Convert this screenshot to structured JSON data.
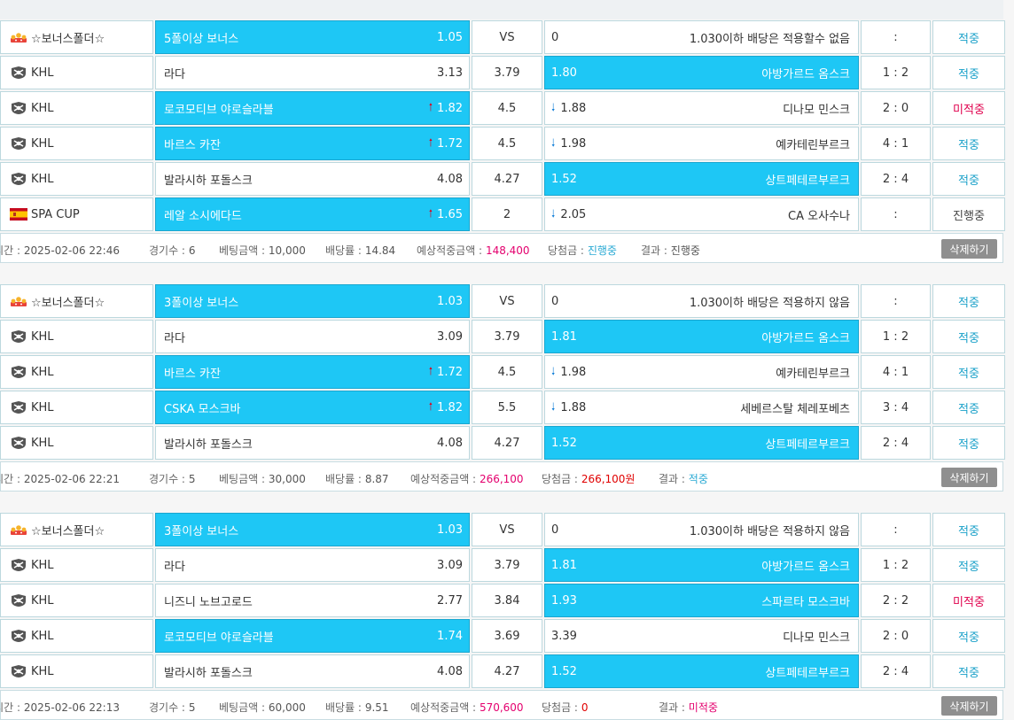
{
  "blocks": [
    {
      "rows": [
        {
          "league_icon": "crown-icon",
          "league": "☆보너스폴더☆",
          "home": "5폴이상 보너스",
          "home_odd": "1.05",
          "home_arrow": "",
          "home_sel": true,
          "draw": "VS",
          "away_odd": "0",
          "away_arrow": "",
          "away": "1.030이하 배당은 적용할수 없음",
          "away_sel": false,
          "score": ":",
          "result": "적중",
          "result_type": "hit"
        },
        {
          "league_icon": "khl-icon",
          "league": "KHL",
          "home": "라다",
          "home_odd": "3.13",
          "home_arrow": "",
          "home_sel": false,
          "draw": "3.79",
          "away_odd": "1.80",
          "away_arrow": "",
          "away": "아방가르드 옴스크",
          "away_sel": true,
          "score": "1 : 2",
          "result": "적중",
          "result_type": "hit"
        },
        {
          "league_icon": "khl-icon",
          "league": "KHL",
          "home": "로코모티브 야로슬라블",
          "home_odd": "1.82",
          "home_arrow": "up",
          "home_sel": true,
          "draw": "4.5",
          "away_odd": "1.88",
          "away_arrow": "down",
          "away": "디나모 민스크",
          "away_sel": false,
          "score": "2 : 0",
          "result": "미적중",
          "result_type": "miss"
        },
        {
          "league_icon": "khl-icon",
          "league": "KHL",
          "home": "바르스 카잔",
          "home_odd": "1.72",
          "home_arrow": "up",
          "home_sel": true,
          "draw": "4.5",
          "away_odd": "1.98",
          "away_arrow": "down",
          "away": "예카테린부르크",
          "away_sel": false,
          "score": "4 : 1",
          "result": "적중",
          "result_type": "hit"
        },
        {
          "league_icon": "khl-icon",
          "league": "KHL",
          "home": "발라시하 포돌스크",
          "home_odd": "4.08",
          "home_arrow": "",
          "home_sel": false,
          "draw": "4.27",
          "away_odd": "1.52",
          "away_arrow": "",
          "away": "상트페테르부르크",
          "away_sel": true,
          "score": "2 : 4",
          "result": "적중",
          "result_type": "hit"
        },
        {
          "league_icon": "spain-flag-icon",
          "league": "SPA CUP",
          "home": "레알 소시에다드",
          "home_odd": "1.65",
          "home_arrow": "up",
          "home_sel": true,
          "draw": "2",
          "away_odd": "2.05",
          "away_arrow": "down",
          "away": "CA 오사수나",
          "away_sel": false,
          "score": ":",
          "result": "진행중",
          "result_type": "prog"
        }
      ],
      "summary": {
        "time_label": "베팅시간 :",
        "time": "2025-02-06 22:46",
        "games_label": "경기수 :",
        "games": "6",
        "amount_label": "베팅금액 :",
        "amount": "10,000",
        "rate_label": "배당률 :",
        "rate": "14.84",
        "expected_label": "예상적중금액 :",
        "expected": "148,400",
        "win_label": "당첨금 :",
        "win": "진행중",
        "win_type": "cyan",
        "result_label": "결과 :",
        "result": "진행중",
        "result_type": "plain",
        "delete": "삭제하기"
      }
    },
    {
      "rows": [
        {
          "league_icon": "crown-icon",
          "league": "☆보너스폴더☆",
          "home": "3폴이상 보너스",
          "home_odd": "1.03",
          "home_arrow": "",
          "home_sel": true,
          "draw": "VS",
          "away_odd": "0",
          "away_arrow": "",
          "away": "1.030이하 배당은 적용하지 않음",
          "away_sel": false,
          "score": ":",
          "result": "적중",
          "result_type": "hit"
        },
        {
          "league_icon": "khl-icon",
          "league": "KHL",
          "home": "라다",
          "home_odd": "3.09",
          "home_arrow": "",
          "home_sel": false,
          "draw": "3.79",
          "away_odd": "1.81",
          "away_arrow": "",
          "away": "아방가르드 옴스크",
          "away_sel": true,
          "score": "1 : 2",
          "result": "적중",
          "result_type": "hit"
        },
        {
          "league_icon": "khl-icon",
          "league": "KHL",
          "home": "바르스 카잔",
          "home_odd": "1.72",
          "home_arrow": "up",
          "home_sel": true,
          "draw": "4.5",
          "away_odd": "1.98",
          "away_arrow": "down",
          "away": "예카테린부르크",
          "away_sel": false,
          "score": "4 : 1",
          "result": "적중",
          "result_type": "hit"
        },
        {
          "league_icon": "khl-icon",
          "league": "KHL",
          "home": "CSKA 모스크바",
          "home_odd": "1.82",
          "home_arrow": "up",
          "home_sel": true,
          "draw": "5.5",
          "away_odd": "1.88",
          "away_arrow": "down",
          "away": "세베르스탈 체레포베츠",
          "away_sel": false,
          "score": "3 : 4",
          "result": "적중",
          "result_type": "hit"
        },
        {
          "league_icon": "khl-icon",
          "league": "KHL",
          "home": "발라시하 포돌스크",
          "home_odd": "4.08",
          "home_arrow": "",
          "home_sel": false,
          "draw": "4.27",
          "away_odd": "1.52",
          "away_arrow": "",
          "away": "상트페테르부르크",
          "away_sel": true,
          "score": "2 : 4",
          "result": "적중",
          "result_type": "hit"
        }
      ],
      "summary": {
        "time_label": "베팅시간 :",
        "time": "2025-02-06 22:21",
        "games_label": "경기수 :",
        "games": "5",
        "amount_label": "베팅금액 :",
        "amount": "30,000",
        "rate_label": "배당률 :",
        "rate": "8.87",
        "expected_label": "예상적중금액 :",
        "expected": "266,100",
        "win_label": "당첨금 :",
        "win": "266,100원",
        "win_type": "red",
        "result_label": "결과 :",
        "result": "적중",
        "result_type": "cyan",
        "delete": "삭제하기"
      }
    },
    {
      "rows": [
        {
          "league_icon": "crown-icon",
          "league": "☆보너스폴더☆",
          "home": "3폴이상 보너스",
          "home_odd": "1.03",
          "home_arrow": "",
          "home_sel": true,
          "draw": "VS",
          "away_odd": "0",
          "away_arrow": "",
          "away": "1.030이하 배당은 적용하지 않음",
          "away_sel": false,
          "score": ":",
          "result": "적중",
          "result_type": "hit"
        },
        {
          "league_icon": "khl-icon",
          "league": "KHL",
          "home": "라다",
          "home_odd": "3.09",
          "home_arrow": "",
          "home_sel": false,
          "draw": "3.79",
          "away_odd": "1.81",
          "away_arrow": "",
          "away": "아방가르드 옴스크",
          "away_sel": true,
          "score": "1 : 2",
          "result": "적중",
          "result_type": "hit"
        },
        {
          "league_icon": "khl-icon",
          "league": "KHL",
          "home": "니즈니 노브고로드",
          "home_odd": "2.77",
          "home_arrow": "",
          "home_sel": false,
          "draw": "3.84",
          "away_odd": "1.93",
          "away_arrow": "",
          "away": "스파르타 모스크바",
          "away_sel": true,
          "score": "2 : 2",
          "result": "미적중",
          "result_type": "miss"
        },
        {
          "league_icon": "khl-icon",
          "league": "KHL",
          "home": "로코모티브 야로슬라블",
          "home_odd": "1.74",
          "home_arrow": "",
          "home_sel": true,
          "draw": "3.69",
          "away_odd": "3.39",
          "away_arrow": "",
          "away": "디나모 민스크",
          "away_sel": false,
          "score": "2 : 0",
          "result": "적중",
          "result_type": "hit"
        },
        {
          "league_icon": "khl-icon",
          "league": "KHL",
          "home": "발라시하 포돌스크",
          "home_odd": "4.08",
          "home_arrow": "",
          "home_sel": false,
          "draw": "4.27",
          "away_odd": "1.52",
          "away_arrow": "",
          "away": "상트페테르부르크",
          "away_sel": true,
          "score": "2 : 4",
          "result": "적중",
          "result_type": "hit"
        }
      ],
      "summary": {
        "time_label": "베팅시간 :",
        "time": "2025-02-06 22:13",
        "games_label": "경기수 :",
        "games": "5",
        "amount_label": "베팅금액 :",
        "amount": "60,000",
        "rate_label": "배당률 :",
        "rate": "9.51",
        "expected_label": "예상적중금액 :",
        "expected": "570,600",
        "win_label": "당첨금 :",
        "win": "0",
        "win_type": "red",
        "result_label": "결과 :",
        "result": "미적중",
        "result_type": "pink",
        "delete": "삭제하기"
      }
    }
  ]
}
